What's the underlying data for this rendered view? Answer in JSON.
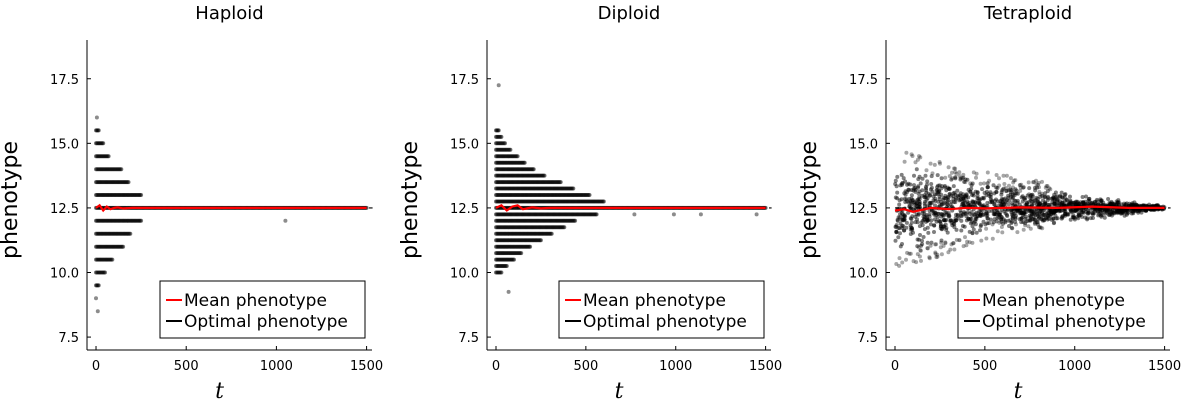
{
  "chart_data": [
    {
      "type": "scatter",
      "title": "Haploid",
      "xlabel": "t",
      "ylabel": "phenotype",
      "xlim": [
        -50,
        1530
      ],
      "ylim": [
        7,
        19
      ],
      "xticks": [
        0,
        500,
        1000,
        1500
      ],
      "xtick_labels": [
        "0",
        "500",
        "1000",
        "1500"
      ],
      "yticks": [
        7.5,
        10.0,
        12.5,
        15.0,
        17.5
      ],
      "ytick_labels": [
        "7.5",
        "10.0",
        "12.5",
        "15.0",
        "17.5"
      ],
      "grid": false,
      "legend": {
        "placement": "bottom-right",
        "entries": [
          "Mean phenotype",
          "Optimal phenotype"
        ]
      },
      "series": [
        {
          "name": "Mean phenotype",
          "kind": "line",
          "color": "#ff0000",
          "x": [
            0,
            20,
            40,
            60,
            80,
            100,
            120,
            150,
            200,
            250,
            300,
            1500
          ],
          "y": [
            12.5,
            12.6,
            12.4,
            12.55,
            12.45,
            12.5,
            12.52,
            12.48,
            12.5,
            12.5,
            12.5,
            12.5
          ]
        },
        {
          "name": "Optimal phenotype",
          "kind": "line",
          "color": "#000000",
          "dash": true,
          "x": [
            0,
            1500
          ],
          "y": [
            12.5,
            12.5
          ]
        },
        {
          "name": "Individuals",
          "kind": "points",
          "color": "#000000",
          "bands": [
            {
              "y": 12.5,
              "x_end": 1500
            },
            {
              "y": 12.0,
              "x_end": 250
            },
            {
              "y": 13.0,
              "x_end": 250
            },
            {
              "y": 11.5,
              "x_end": 190
            },
            {
              "y": 13.5,
              "x_end": 180
            },
            {
              "y": 11.0,
              "x_end": 150
            },
            {
              "y": 14.0,
              "x_end": 140
            },
            {
              "y": 10.5,
              "x_end": 90
            },
            {
              "y": 14.5,
              "x_end": 70
            },
            {
              "y": 10.0,
              "x_end": 50
            },
            {
              "y": 15.0,
              "x_end": 40
            },
            {
              "y": 9.5,
              "x_end": 15
            },
            {
              "y": 15.5,
              "x_end": 15
            }
          ],
          "extra_points": [
            {
              "x": 1050,
              "y": 12.0
            },
            {
              "x": 0,
              "y": 9.0
            },
            {
              "x": 5,
              "y": 16.0
            },
            {
              "x": 10,
              "y": 8.5
            }
          ]
        }
      ]
    },
    {
      "type": "scatter",
      "title": "Diploid",
      "xlabel": "t",
      "ylabel": "phenotype",
      "xlim": [
        -50,
        1530
      ],
      "ylim": [
        7,
        19
      ],
      "xticks": [
        0,
        500,
        1000,
        1500
      ],
      "xtick_labels": [
        "0",
        "500",
        "1000",
        "1500"
      ],
      "yticks": [
        7.5,
        10.0,
        12.5,
        15.0,
        17.5
      ],
      "ytick_labels": [
        "7.5",
        "10.0",
        "12.5",
        "15.0",
        "17.5"
      ],
      "grid": false,
      "legend": {
        "placement": "bottom-right",
        "entries": [
          "Mean phenotype",
          "Optimal phenotype"
        ]
      },
      "series": [
        {
          "name": "Mean phenotype",
          "kind": "line",
          "color": "#ff0000",
          "x": [
            0,
            30,
            60,
            90,
            120,
            150,
            200,
            250,
            300,
            400,
            500,
            1500
          ],
          "y": [
            12.5,
            12.6,
            12.4,
            12.55,
            12.6,
            12.45,
            12.52,
            12.48,
            12.5,
            12.5,
            12.5,
            12.5
          ]
        },
        {
          "name": "Optimal phenotype",
          "kind": "line",
          "color": "#000000",
          "dash": true,
          "x": [
            0,
            1500
          ],
          "y": [
            12.5,
            12.5
          ]
        },
        {
          "name": "Individuals",
          "kind": "points",
          "color": "#000000",
          "bands": [
            {
              "y": 12.5,
              "x_end": 1500
            },
            {
              "y": 12.25,
              "x_end": 560
            },
            {
              "y": 12.75,
              "x_end": 600
            },
            {
              "y": 12.0,
              "x_end": 440
            },
            {
              "y": 13.0,
              "x_end": 520
            },
            {
              "y": 11.75,
              "x_end": 380
            },
            {
              "y": 13.25,
              "x_end": 430
            },
            {
              "y": 11.5,
              "x_end": 310
            },
            {
              "y": 13.5,
              "x_end": 360
            },
            {
              "y": 11.25,
              "x_end": 250
            },
            {
              "y": 13.75,
              "x_end": 270
            },
            {
              "y": 11.0,
              "x_end": 190
            },
            {
              "y": 14.0,
              "x_end": 210
            },
            {
              "y": 10.75,
              "x_end": 140
            },
            {
              "y": 14.25,
              "x_end": 160
            },
            {
              "y": 10.5,
              "x_end": 100
            },
            {
              "y": 14.5,
              "x_end": 120
            },
            {
              "y": 10.25,
              "x_end": 60
            },
            {
              "y": 14.75,
              "x_end": 80
            },
            {
              "y": 10.0,
              "x_end": 30
            },
            {
              "y": 15.0,
              "x_end": 50
            },
            {
              "y": 15.25,
              "x_end": 30
            },
            {
              "y": 15.5,
              "x_end": 15
            }
          ],
          "extra_points": [
            {
              "x": 990,
              "y": 12.25
            },
            {
              "x": 1140,
              "y": 12.25
            },
            {
              "x": 770,
              "y": 12.25
            },
            {
              "x": 1450,
              "y": 12.25
            },
            {
              "x": 70,
              "y": 9.25
            },
            {
              "x": 15,
              "y": 17.25
            }
          ]
        }
      ]
    },
    {
      "type": "scatter",
      "title": "Tetraploid",
      "xlabel": "t",
      "ylabel": "phenotype",
      "xlim": [
        -50,
        1530
      ],
      "ylim": [
        7,
        19
      ],
      "xticks": [
        0,
        500,
        1000,
        1500
      ],
      "xtick_labels": [
        "0",
        "500",
        "1000",
        "1500"
      ],
      "yticks": [
        7.5,
        10.0,
        12.5,
        15.0,
        17.5
      ],
      "ytick_labels": [
        "7.5",
        "10.0",
        "12.5",
        "15.0",
        "17.5"
      ],
      "grid": false,
      "legend": {
        "placement": "bottom-right",
        "entries": [
          "Mean phenotype",
          "Optimal phenotype"
        ]
      },
      "series": [
        {
          "name": "Mean phenotype",
          "kind": "line",
          "color": "#ff0000",
          "x": [
            0,
            50,
            100,
            200,
            300,
            400,
            500,
            700,
            900,
            1100,
            1300,
            1500
          ],
          "y": [
            12.4,
            12.45,
            12.35,
            12.5,
            12.45,
            12.5,
            12.48,
            12.52,
            12.5,
            12.55,
            12.5,
            12.5
          ]
        },
        {
          "name": "Optimal phenotype",
          "kind": "line",
          "color": "#000000",
          "dash": true,
          "x": [
            0,
            1500
          ],
          "y": [
            12.5,
            12.5
          ]
        },
        {
          "name": "Individuals",
          "kind": "cloud",
          "color": "#000000",
          "envelope": {
            "x": [
              0,
              250,
              500,
              750,
              1000,
              1250,
              1500
            ],
            "upper": [
              14.9,
              14.3,
              13.9,
              13.6,
              13.3,
              12.9,
              12.6
            ],
            "lower": [
              10.2,
              10.6,
              11.2,
              11.6,
              11.9,
              12.1,
              12.4
            ]
          }
        }
      ]
    }
  ]
}
